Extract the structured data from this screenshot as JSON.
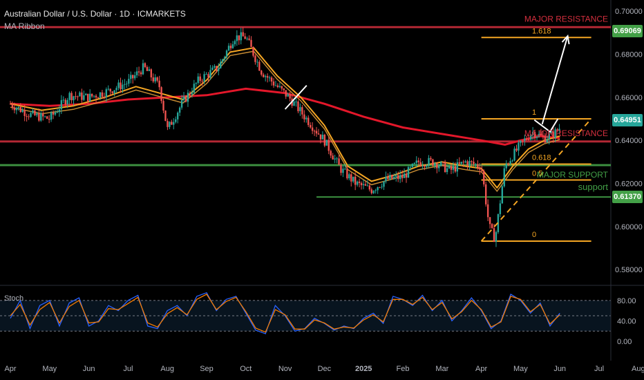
{
  "header": {
    "title": "Australian Dollar / U.S. Dollar · 1D · ICMARKETS",
    "indicator": "MA Ribbon",
    "stoch_label": "Stoch"
  },
  "colors": {
    "background": "#000000",
    "candle_up": "#26a69a",
    "candle_down": "#ef5350",
    "resistance": "#d32f3e",
    "support": "#43a047",
    "fib": "#f5a623",
    "ma_long": "#e3172a",
    "ma_short": "#f5a623",
    "stoch_k": "#2962ff",
    "stoch_d": "#f57c00",
    "arrow": "#ffffff",
    "price_tag_current": "#26a69a",
    "price_tag_resist": "#43a047"
  },
  "chart_data": [
    {
      "type": "candlestick",
      "title": "Australian Dollar / U.S. Dollar · 1D · ICMARKETS",
      "y_axis": {
        "ylim": [
          0.573,
          0.702
        ],
        "ticks": [
          "0.70000",
          "0.68000",
          "0.66000",
          "0.64000",
          "0.62000",
          "0.60000",
          "0.58000"
        ],
        "tick_values": [
          0.7,
          0.68,
          0.66,
          0.64,
          0.62,
          0.6,
          0.58
        ]
      },
      "x_axis": {
        "ticks": [
          "Apr",
          "May",
          "Jun",
          "Jul",
          "Aug",
          "Sep",
          "Oct",
          "Nov",
          "Dec",
          "2025",
          "Feb",
          "Mar",
          "Apr",
          "May",
          "Jun",
          "Jul",
          "Aug"
        ],
        "tick_months": [
          0,
          1,
          2,
          3,
          4,
          5,
          6,
          7,
          8,
          9,
          10,
          11,
          12,
          13,
          14,
          15,
          16
        ]
      },
      "price_path": [
        [
          0.0,
          0.657
        ],
        [
          0.5,
          0.652
        ],
        [
          1.0,
          0.65
        ],
        [
          1.5,
          0.661
        ],
        [
          2.0,
          0.66
        ],
        [
          2.5,
          0.663
        ],
        [
          3.0,
          0.667
        ],
        [
          3.4,
          0.674
        ],
        [
          3.8,
          0.665
        ],
        [
          4.0,
          0.645
        ],
        [
          4.4,
          0.658
        ],
        [
          4.8,
          0.668
        ],
        [
          5.3,
          0.674
        ],
        [
          5.7,
          0.688
        ],
        [
          6.0,
          0.688
        ],
        [
          6.4,
          0.672
        ],
        [
          6.8,
          0.665
        ],
        [
          7.1,
          0.66
        ],
        [
          7.5,
          0.651
        ],
        [
          8.0,
          0.64
        ],
        [
          8.4,
          0.627
        ],
        [
          8.8,
          0.62
        ],
        [
          9.2,
          0.617
        ],
        [
          9.6,
          0.622
        ],
        [
          10.0,
          0.623
        ],
        [
          10.4,
          0.63
        ],
        [
          10.8,
          0.63
        ],
        [
          11.2,
          0.626
        ],
        [
          11.6,
          0.63
        ],
        [
          12.0,
          0.628
        ],
        [
          12.2,
          0.6
        ],
        [
          12.35,
          0.594
        ],
        [
          12.6,
          0.628
        ],
        [
          13.0,
          0.638
        ],
        [
          13.3,
          0.644
        ],
        [
          13.6,
          0.641
        ],
        [
          13.85,
          0.643
        ],
        [
          14.0,
          0.646
        ]
      ],
      "moving_averages": [
        {
          "name": "",
          "color": "#e3172a",
          "values": [
            [
              0,
              0.657
            ],
            [
              1,
              0.656
            ],
            [
              2,
              0.657
            ],
            [
              3,
              0.659
            ],
            [
              4,
              0.66
            ],
            [
              5,
              0.661
            ],
            [
              6,
              0.664
            ],
            [
              7,
              0.662
            ],
            [
              8,
              0.657
            ],
            [
              9,
              0.651
            ],
            [
              10,
              0.646
            ],
            [
              11,
              0.643
            ],
            [
              12,
              0.64
            ],
            [
              12.6,
              0.638
            ],
            [
              13.0,
              0.64
            ],
            [
              13.5,
              0.642
            ],
            [
              14.0,
              0.641
            ]
          ]
        },
        {
          "name": "",
          "color": "#f5a623",
          "values": [
            [
              0,
              0.657
            ],
            [
              0.8,
              0.654
            ],
            [
              1.6,
              0.656
            ],
            [
              2.4,
              0.66
            ],
            [
              3.2,
              0.665
            ],
            [
              3.8,
              0.662
            ],
            [
              4.4,
              0.659
            ],
            [
              5.0,
              0.668
            ],
            [
              5.6,
              0.681
            ],
            [
              6.2,
              0.683
            ],
            [
              6.8,
              0.67
            ],
            [
              7.4,
              0.66
            ],
            [
              8.0,
              0.647
            ],
            [
              8.6,
              0.628
            ],
            [
              9.2,
              0.621
            ],
            [
              9.8,
              0.624
            ],
            [
              10.4,
              0.628
            ],
            [
              11.0,
              0.63
            ],
            [
              11.6,
              0.628
            ],
            [
              12.0,
              0.627
            ],
            [
              12.4,
              0.618
            ],
            [
              12.8,
              0.628
            ],
            [
              13.2,
              0.636
            ],
            [
              13.6,
              0.64
            ],
            [
              14.0,
              0.642
            ]
          ]
        }
      ],
      "horizontal_levels": [
        {
          "label": "MAJOR RESISTANCE",
          "value": 0.6926,
          "color": "#d32f3e"
        },
        {
          "label": "MAJOR RESISTANCE",
          "value": 0.6395,
          "color": "#d32f3e"
        },
        {
          "label": "MAJOR SUPPORT",
          "value": 0.6285,
          "color": "#43a047"
        },
        {
          "label": "support",
          "value": 0.6137,
          "color": "#43a047"
        }
      ],
      "fibonacci": {
        "levels": [
          {
            "ratio": "1.618",
            "value": 0.6878
          },
          {
            "ratio": "1",
            "value": 0.65
          },
          {
            "ratio": "0.618",
            "value": 0.629
          },
          {
            "ratio": "0.5",
            "value": 0.6216
          },
          {
            "ratio": "0",
            "value": 0.5932
          }
        ],
        "x_range_months": [
          12.0,
          14.8
        ]
      },
      "trendline": {
        "from": [
          12.0,
          0.5932
        ],
        "to": [
          14.0,
          0.6425
        ],
        "extend_to": [
          14.8,
          0.65
        ],
        "style": "dashed"
      },
      "arrows": [
        {
          "from": [
            13.55,
            0.6475
          ],
          "to": [
            14.2,
            0.6885
          ],
          "color": "#ffffff"
        }
      ],
      "annotations": [
        {
          "points": [
            [
              7.0,
              0.6545
            ],
            [
              7.55,
              0.6655
            ]
          ],
          "color": "#ffffff"
        },
        {
          "points": [
            [
              13.35,
              0.6495
            ],
            [
              13.75,
              0.644
            ],
            [
              13.95,
              0.65
            ]
          ],
          "color": "#ffffff"
        }
      ],
      "price_tags": [
        {
          "label": "0.69069",
          "value": 0.6907,
          "color": "#43a047"
        },
        {
          "label": "0.64951",
          "value": 0.6495,
          "color": "#26a69a"
        },
        {
          "label": "0.61370",
          "value": 0.6137,
          "color": "#43a047"
        }
      ]
    },
    {
      "type": "line",
      "title": "Stoch",
      "ylim": [
        -8,
        100
      ],
      "y_ticks": [
        "80.00",
        "40.00",
        "0.00"
      ],
      "y_tick_values": [
        80,
        40,
        0
      ],
      "bands": [
        80,
        50,
        20
      ],
      "series": [
        {
          "name": "",
          "color": "#2962ff",
          "values": [
            [
              0,
              45
            ],
            [
              0.25,
              80
            ],
            [
              0.5,
              25
            ],
            [
              0.75,
              70
            ],
            [
              1.0,
              80
            ],
            [
              1.25,
              30
            ],
            [
              1.5,
              75
            ],
            [
              1.75,
              85
            ],
            [
              2.0,
              30
            ],
            [
              2.25,
              40
            ],
            [
              2.5,
              70
            ],
            [
              2.75,
              60
            ],
            [
              3.0,
              80
            ],
            [
              3.25,
              90
            ],
            [
              3.5,
              30
            ],
            [
              3.75,
              25
            ],
            [
              4.0,
              60
            ],
            [
              4.25,
              70
            ],
            [
              4.5,
              50
            ],
            [
              4.75,
              88
            ],
            [
              5.0,
              95
            ],
            [
              5.25,
              60
            ],
            [
              5.5,
              82
            ],
            [
              5.75,
              88
            ],
            [
              6.0,
              55
            ],
            [
              6.25,
              22
            ],
            [
              6.5,
              15
            ],
            [
              6.75,
              70
            ],
            [
              7.0,
              50
            ],
            [
              7.25,
              20
            ],
            [
              7.5,
              25
            ],
            [
              7.75,
              45
            ],
            [
              8.0,
              35
            ],
            [
              8.25,
              22
            ],
            [
              8.5,
              30
            ],
            [
              8.75,
              25
            ],
            [
              9.0,
              45
            ],
            [
              9.25,
              55
            ],
            [
              9.5,
              35
            ],
            [
              9.75,
              88
            ],
            [
              10.0,
              82
            ],
            [
              10.25,
              70
            ],
            [
              10.5,
              90
            ],
            [
              10.75,
              60
            ],
            [
              11.0,
              80
            ],
            [
              11.25,
              40
            ],
            [
              11.5,
              60
            ],
            [
              11.75,
              85
            ],
            [
              12.0,
              60
            ],
            [
              12.25,
              25
            ],
            [
              12.5,
              40
            ],
            [
              12.75,
              92
            ],
            [
              13.0,
              80
            ],
            [
              13.25,
              55
            ],
            [
              13.5,
              75
            ],
            [
              13.75,
              30
            ],
            [
              14.0,
              55
            ]
          ]
        },
        {
          "name": "",
          "color": "#f57c00",
          "values": [
            [
              0,
              50
            ],
            [
              0.25,
              72
            ],
            [
              0.5,
              32
            ],
            [
              0.75,
              62
            ],
            [
              1.0,
              76
            ],
            [
              1.25,
              36
            ],
            [
              1.5,
              68
            ],
            [
              1.75,
              80
            ],
            [
              2.0,
              36
            ],
            [
              2.25,
              38
            ],
            [
              2.5,
              64
            ],
            [
              2.75,
              62
            ],
            [
              3.0,
              74
            ],
            [
              3.25,
              86
            ],
            [
              3.5,
              36
            ],
            [
              3.75,
              28
            ],
            [
              4.0,
              54
            ],
            [
              4.25,
              66
            ],
            [
              4.5,
              52
            ],
            [
              4.75,
              82
            ],
            [
              5.0,
              92
            ],
            [
              5.25,
              62
            ],
            [
              5.5,
              78
            ],
            [
              5.75,
              86
            ],
            [
              6.0,
              58
            ],
            [
              6.25,
              26
            ],
            [
              6.5,
              18
            ],
            [
              6.75,
              62
            ],
            [
              7.0,
              52
            ],
            [
              7.25,
              24
            ],
            [
              7.5,
              24
            ],
            [
              7.75,
              42
            ],
            [
              8.0,
              36
            ],
            [
              8.25,
              24
            ],
            [
              8.5,
              28
            ],
            [
              8.75,
              26
            ],
            [
              9.0,
              42
            ],
            [
              9.25,
              52
            ],
            [
              9.5,
              38
            ],
            [
              9.75,
              82
            ],
            [
              10.0,
              82
            ],
            [
              10.25,
              72
            ],
            [
              10.5,
              86
            ],
            [
              10.75,
              62
            ],
            [
              11.0,
              76
            ],
            [
              11.25,
              44
            ],
            [
              11.5,
              58
            ],
            [
              11.75,
              80
            ],
            [
              12.0,
              62
            ],
            [
              12.25,
              28
            ],
            [
              12.5,
              38
            ],
            [
              12.75,
              88
            ],
            [
              13.0,
              82
            ],
            [
              13.25,
              58
            ],
            [
              13.5,
              72
            ],
            [
              13.75,
              34
            ],
            [
              14.0,
              52
            ]
          ]
        }
      ]
    }
  ]
}
